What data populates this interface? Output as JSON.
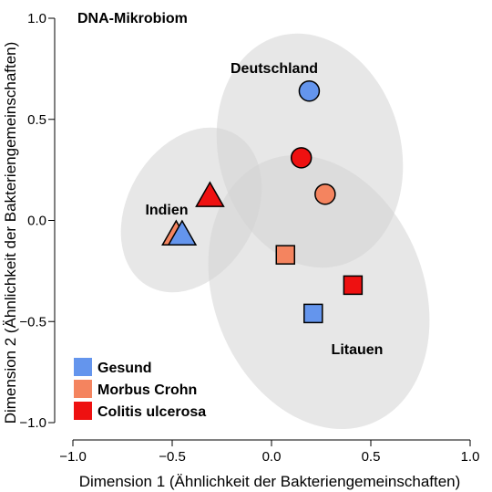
{
  "chart_data": {
    "type": "scatter",
    "title": "DNA-Mikrobiom",
    "xlabel": "Dimension 1 (Ähnlichkeit der Bakteriengemeinschaften)",
    "ylabel": "Dimension 2 (Ähnlichkeit der Bakteriengemeinschaften)",
    "xlim": [
      -1.0,
      1.0
    ],
    "ylim": [
      -1.0,
      1.0
    ],
    "xticks": [
      -1.0,
      -0.5,
      0.0,
      0.5,
      1.0
    ],
    "yticks": [
      -1.0,
      -0.5,
      0.0,
      0.5,
      1.0
    ],
    "xtick_labels": [
      "−1.0",
      "−0.5",
      "0.0",
      "0.5",
      "1.0"
    ],
    "ytick_labels": [
      "−1.0",
      "−0.5",
      "0.0",
      "0.5",
      "1.0"
    ],
    "grid": false,
    "legend_position": "bottom-left",
    "series": [
      {
        "name": "Gesund",
        "color": "#6495ED"
      },
      {
        "name": "Morbus Crohn",
        "color": "#F4845F"
      },
      {
        "name": "Colitis ulcerosa",
        "color": "#EE1111"
      }
    ],
    "groups": [
      {
        "name": "Deutschland",
        "shape": "circle",
        "points": [
          {
            "series": "Gesund",
            "x": 0.19,
            "y": 0.64
          },
          {
            "series": "Colitis ulcerosa",
            "x": 0.15,
            "y": 0.31
          },
          {
            "series": "Morbus Crohn",
            "x": 0.27,
            "y": 0.13
          }
        ]
      },
      {
        "name": "Indien",
        "shape": "triangle",
        "points": [
          {
            "series": "Colitis ulcerosa",
            "x": -0.31,
            "y": 0.12
          },
          {
            "series": "Morbus Crohn",
            "x": -0.48,
            "y": -0.07
          },
          {
            "series": "Gesund",
            "x": -0.45,
            "y": -0.07
          }
        ]
      },
      {
        "name": "Litauen",
        "shape": "square",
        "points": [
          {
            "series": "Morbus Crohn",
            "x": 0.07,
            "y": -0.17
          },
          {
            "series": "Colitis ulcerosa",
            "x": 0.41,
            "y": -0.32
          },
          {
            "series": "Gesund",
            "x": 0.21,
            "y": -0.46
          }
        ]
      }
    ]
  }
}
